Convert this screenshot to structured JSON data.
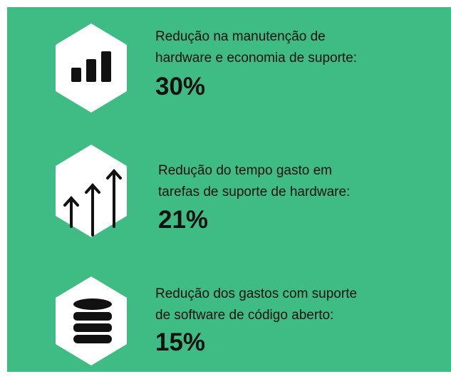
{
  "items": [
    {
      "line1": "Redução na manutenção de",
      "line2": "hardware e economia de suporte:",
      "value": "30%"
    },
    {
      "line1": "Redução do tempo gasto em",
      "line2": "tarefas de suporte de hardware:",
      "value": "21%"
    },
    {
      "line1": "Redução dos gastos com suporte",
      "line2": "de software de código aberto:",
      "value": "15%"
    }
  ]
}
